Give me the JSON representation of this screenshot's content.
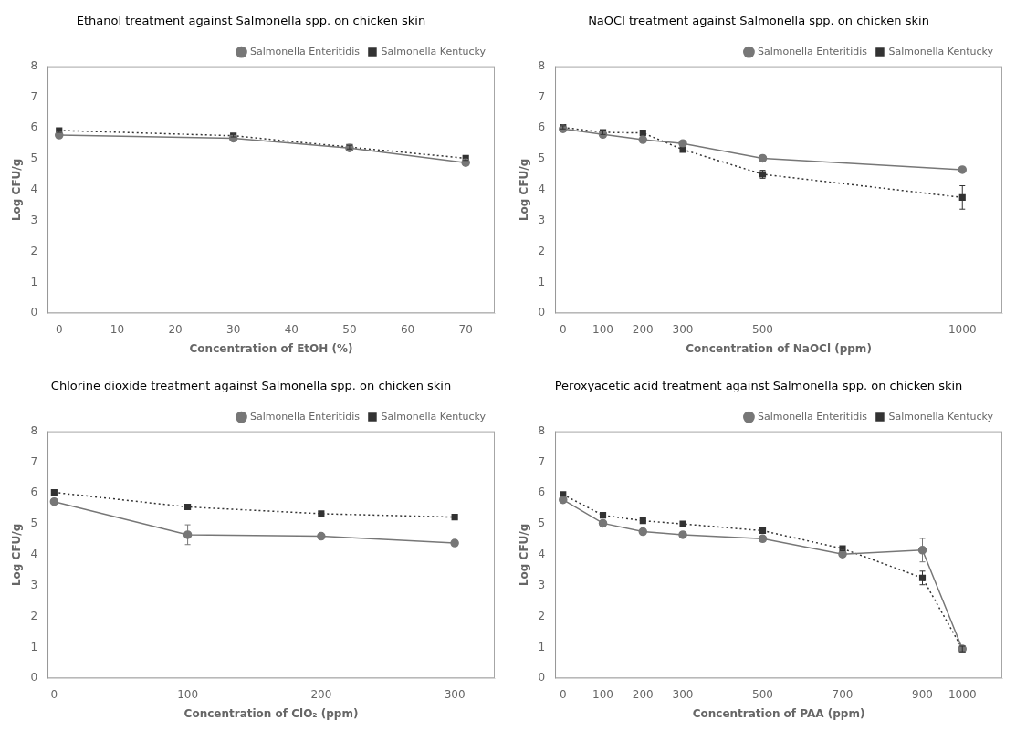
{
  "chart_data": [
    {
      "type": "line",
      "title": "Ethanol treatment against Salmonella spp. on chicken skin",
      "xlabel": "Concentration of EtOH (%)",
      "ylabel": "Log CFU/g",
      "xlim": [
        -2,
        75
      ],
      "ylim": [
        0,
        8
      ],
      "xticks": [
        0,
        10,
        20,
        30,
        40,
        50,
        60,
        70
      ],
      "yticks": [
        0,
        1,
        2,
        3,
        4,
        5,
        6,
        7,
        8
      ],
      "grid": false,
      "legend": "upper right",
      "x": [
        0,
        30,
        50,
        70
      ],
      "series": [
        {
          "name": "Salmonella Enteritidis",
          "color": "#777777",
          "marker": "circle",
          "line_style": "solid",
          "values": [
            5.77,
            5.67,
            5.35,
            4.88
          ],
          "yerr": [
            0.07,
            0.05,
            0.04,
            0.1
          ]
        },
        {
          "name": "Salmonella Kentucky",
          "color": "#333333",
          "marker": "square",
          "line_style": "dotted",
          "values": [
            5.92,
            5.75,
            5.38,
            5.02
          ],
          "yerr": [
            0.06,
            0.04,
            0.06,
            0.07
          ]
        }
      ]
    },
    {
      "type": "line",
      "title": "NaOCl treatment against Salmonella spp. on chicken skin",
      "xlabel": "Concentration of NaOCl (ppm)",
      "ylabel": "Log CFU/g",
      "xlim": [
        -20,
        1100
      ],
      "ylim": [
        0,
        8
      ],
      "xticks": [
        0,
        100,
        200,
        300,
        500,
        1000
      ],
      "yticks": [
        0,
        1,
        2,
        3,
        4,
        5,
        6,
        7,
        8
      ],
      "grid": false,
      "legend": "upper right",
      "x": [
        0,
        100,
        200,
        300,
        500,
        1000
      ],
      "series": [
        {
          "name": "Salmonella Enteritidis",
          "color": "#777777",
          "marker": "circle",
          "line_style": "solid",
          "values": [
            5.97,
            5.79,
            5.62,
            5.5,
            5.02,
            4.65
          ],
          "yerr": [
            0.05,
            0.06,
            0.05,
            0.07,
            0.09,
            0.08
          ]
        },
        {
          "name": "Salmonella Kentucky",
          "color": "#333333",
          "marker": "square",
          "line_style": "dotted",
          "values": [
            6.02,
            5.86,
            5.84,
            5.3,
            4.5,
            3.75
          ],
          "yerr": [
            0.05,
            0.07,
            0.06,
            0.06,
            0.13,
            0.38
          ]
        }
      ]
    },
    {
      "type": "line",
      "title": "Chlorine dioxide treatment against Salmonella spp. on chicken skin",
      "xlabel": "Concentration of ClO₂ (ppm)",
      "ylabel": "Log CFU/g",
      "xlim": [
        -5,
        330
      ],
      "ylim": [
        0,
        8
      ],
      "xticks": [
        0,
        100,
        200,
        300
      ],
      "yticks": [
        0,
        1,
        2,
        3,
        4,
        5,
        6,
        7,
        8
      ],
      "grid": false,
      "legend": "upper right",
      "x": [
        0,
        100,
        200,
        300
      ],
      "series": [
        {
          "name": "Salmonella Enteritidis",
          "color": "#777777",
          "marker": "circle",
          "line_style": "solid",
          "values": [
            5.72,
            4.65,
            4.6,
            4.38
          ],
          "yerr": [
            0.05,
            0.32,
            0.07,
            0.05
          ]
        },
        {
          "name": "Salmonella Kentucky",
          "color": "#333333",
          "marker": "square",
          "line_style": "dotted",
          "values": [
            6.02,
            5.55,
            5.33,
            5.22
          ],
          "yerr": [
            0.05,
            0.05,
            0.06,
            0.05
          ]
        }
      ]
    },
    {
      "type": "line",
      "title": "Peroxyacetic acid treatment against Salmonella spp. on chicken skin",
      "xlabel": "Concentration of PAA (ppm)",
      "ylabel": "Log CFU/g",
      "xlim": [
        -20,
        1100
      ],
      "ylim": [
        0,
        8
      ],
      "xticks": [
        0,
        100,
        200,
        300,
        500,
        700,
        900,
        1000
      ],
      "yticks": [
        0,
        1,
        2,
        3,
        4,
        5,
        6,
        7,
        8
      ],
      "grid": false,
      "legend": "upper right",
      "x": [
        0,
        100,
        200,
        300,
        500,
        700,
        900,
        1000
      ],
      "series": [
        {
          "name": "Salmonella Enteritidis",
          "color": "#777777",
          "marker": "circle",
          "line_style": "solid",
          "values": [
            5.78,
            5.02,
            4.75,
            4.65,
            4.52,
            4.02,
            4.15,
            0.95
          ],
          "yerr": [
            0.06,
            0.09,
            0.08,
            0.07,
            0.06,
            0.07,
            0.38,
            0.08
          ]
        },
        {
          "name": "Salmonella Kentucky",
          "color": "#333333",
          "marker": "square",
          "line_style": "dotted",
          "values": [
            5.95,
            5.28,
            5.1,
            5.0,
            4.78,
            4.2,
            3.25,
            0.95
          ],
          "yerr": [
            0.05,
            0.06,
            0.07,
            0.06,
            0.06,
            0.07,
            0.22,
            0.09
          ]
        }
      ]
    }
  ]
}
